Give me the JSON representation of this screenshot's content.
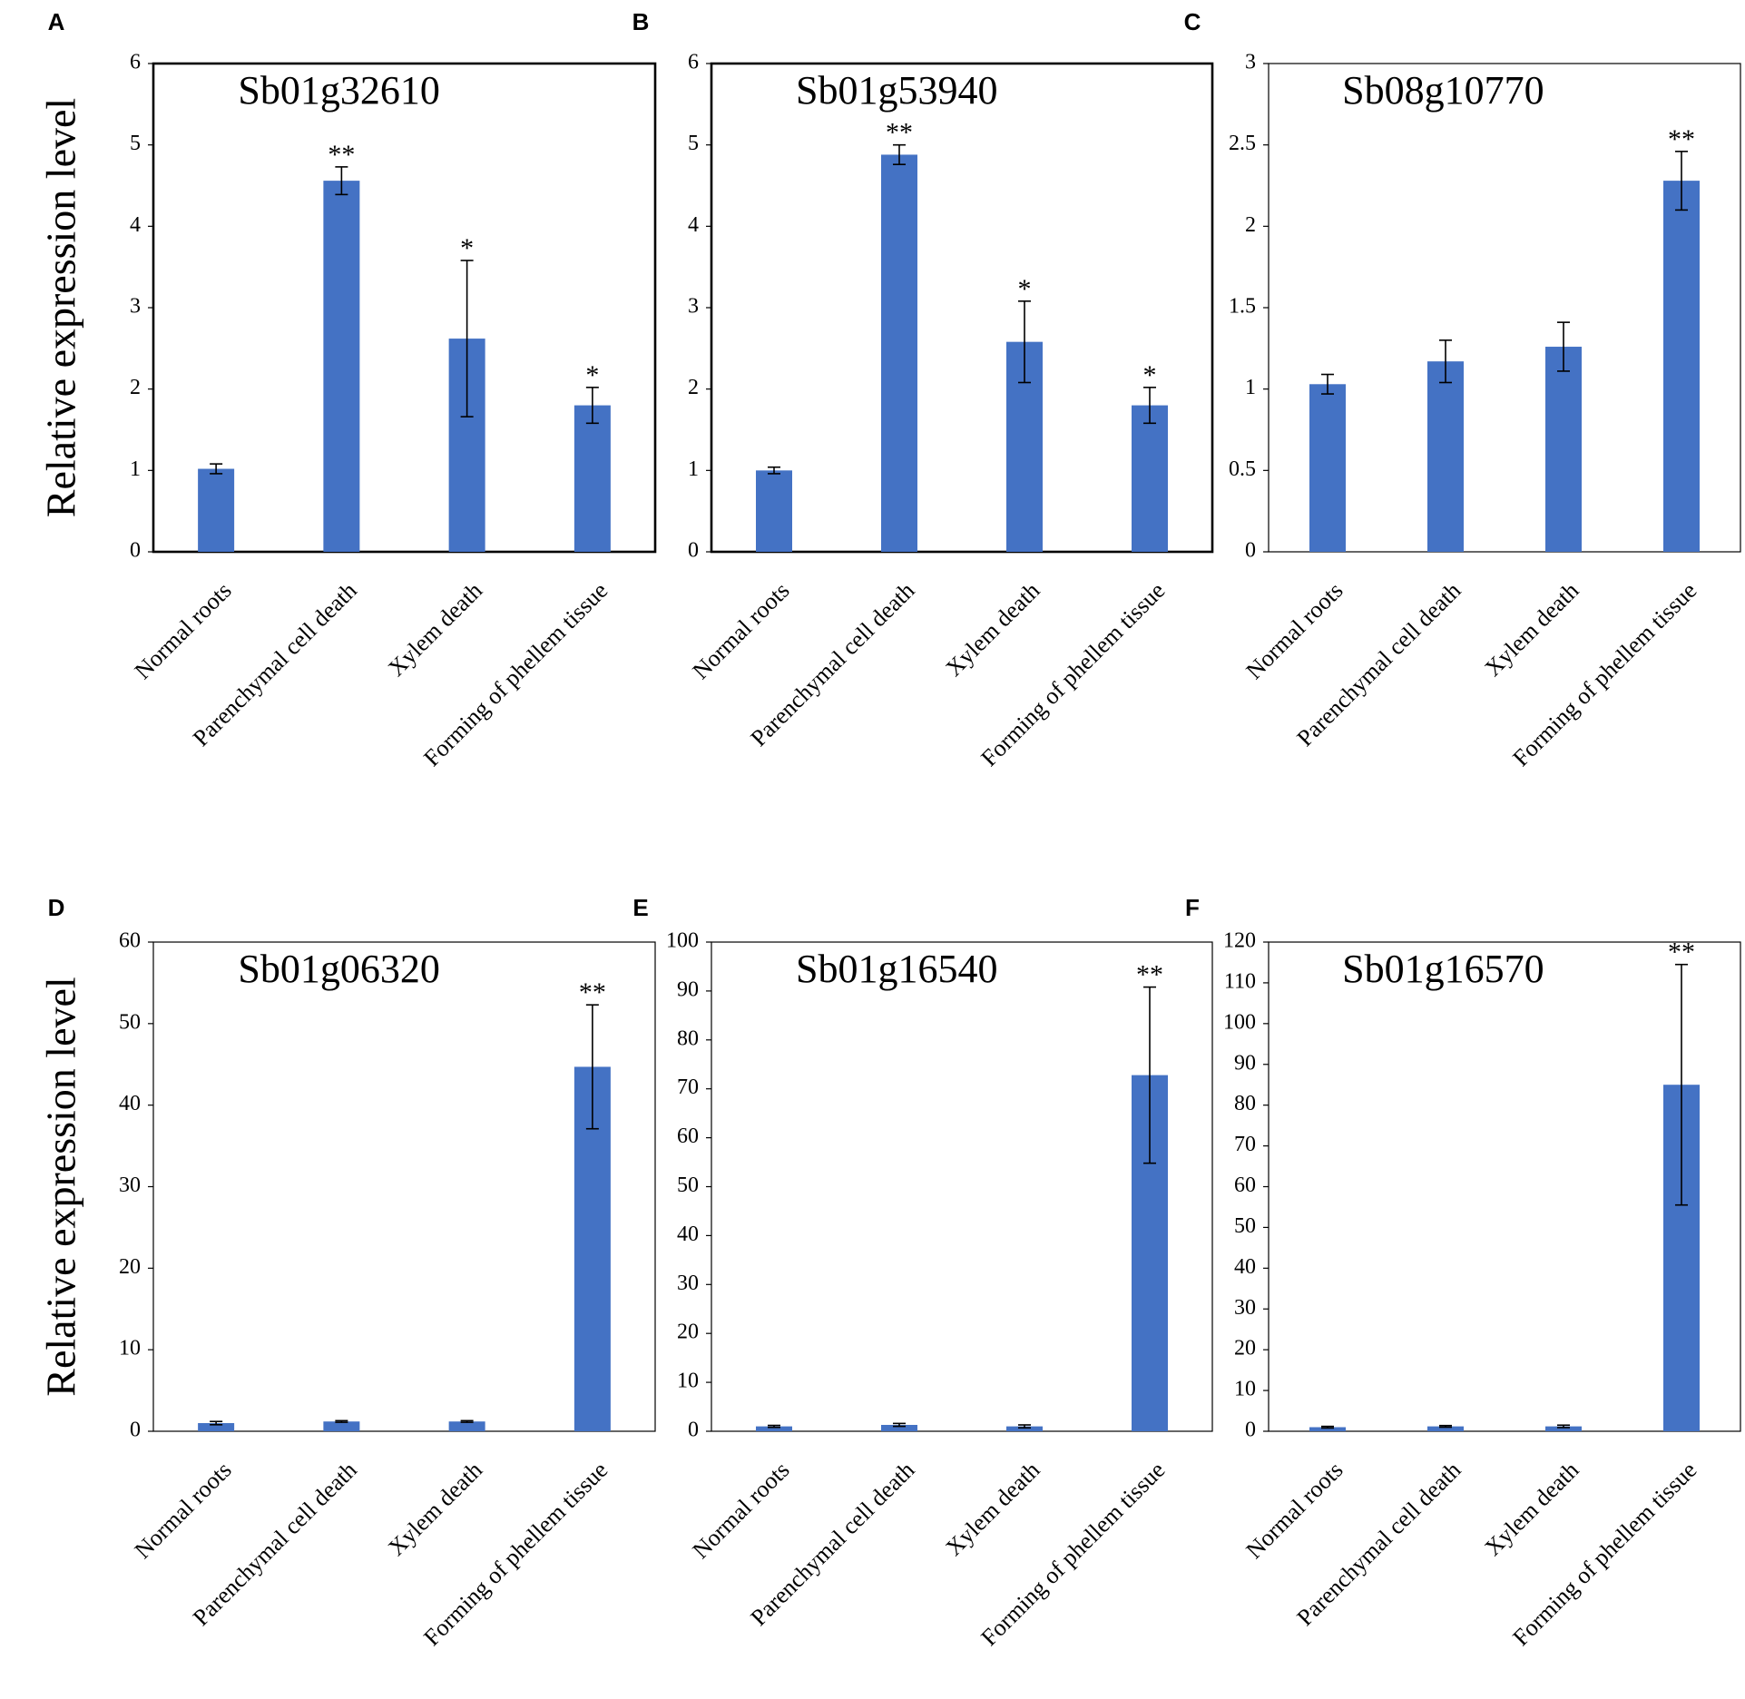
{
  "figure": {
    "ylabel": "Relative expression level",
    "bar_color": "#4472C4"
  },
  "chart_data": [
    {
      "type": "bar",
      "panel": "A",
      "title": "Sb01g32610",
      "xlabel": "",
      "ylabel": "Relative expression level",
      "categories": [
        "Normal roots",
        "Parenchymal cell death",
        "Xylem death",
        "Forming of phellem tissue"
      ],
      "values": [
        1.02,
        4.56,
        2.62,
        1.8
      ],
      "errors": [
        0.06,
        0.17,
        0.96,
        0.22
      ],
      "significance": [
        "",
        "**",
        "*",
        "*"
      ],
      "ylim": [
        0,
        6
      ],
      "yticks": [
        0,
        1,
        2,
        3,
        4,
        5,
        6
      ],
      "ytick_labels": [
        "0",
        "1",
        "2",
        "3",
        "4",
        "5",
        "6"
      ],
      "frame": "bold"
    },
    {
      "type": "bar",
      "panel": "B",
      "title": "Sb01g53940",
      "xlabel": "",
      "ylabel": "",
      "categories": [
        "Normal roots",
        "Parenchymal cell death",
        "Xylem death",
        "Forming of phellem tissue"
      ],
      "values": [
        1.0,
        4.88,
        2.58,
        1.8
      ],
      "errors": [
        0.04,
        0.12,
        0.5,
        0.22
      ],
      "significance": [
        "",
        "**",
        "*",
        "*"
      ],
      "ylim": [
        0,
        6
      ],
      "yticks": [
        0,
        1,
        2,
        3,
        4,
        5,
        6
      ],
      "ytick_labels": [
        "0",
        "1",
        "2",
        "3",
        "4",
        "5",
        "6"
      ],
      "frame": "bold"
    },
    {
      "type": "bar",
      "panel": "C",
      "title": "Sb08g10770",
      "xlabel": "",
      "ylabel": "",
      "categories": [
        "Normal roots",
        "Parenchymal cell death",
        "Xylem death",
        "Forming of phellem tissue"
      ],
      "values": [
        1.03,
        1.17,
        1.26,
        2.28
      ],
      "errors": [
        0.06,
        0.13,
        0.15,
        0.18
      ],
      "significance": [
        "",
        "",
        "",
        "**"
      ],
      "ylim": [
        0,
        3
      ],
      "yticks": [
        0,
        0.5,
        1,
        1.5,
        2,
        2.5,
        3
      ],
      "ytick_labels": [
        "0",
        "0.5",
        "1",
        "1.5",
        "2",
        "2.5",
        "3"
      ],
      "frame": "thin"
    },
    {
      "type": "bar",
      "panel": "D",
      "title": "Sb01g06320",
      "xlabel": "",
      "ylabel": "Relative expression level",
      "categories": [
        "Normal roots",
        "Parenchymal cell death",
        "Xylem death",
        "Forming of phellem tissue"
      ],
      "values": [
        1.0,
        1.2,
        1.2,
        44.7
      ],
      "errors": [
        0.2,
        0.1,
        0.1,
        7.6
      ],
      "significance": [
        "",
        "",
        "",
        "**"
      ],
      "ylim": [
        0,
        60
      ],
      "yticks": [
        0,
        10,
        20,
        30,
        40,
        50,
        60
      ],
      "ytick_labels": [
        "0",
        "10",
        "20",
        "30",
        "40",
        "50",
        "60"
      ],
      "frame": "thin"
    },
    {
      "type": "bar",
      "panel": "E",
      "title": "Sb01g16540",
      "xlabel": "",
      "ylabel": "",
      "categories": [
        "Normal roots",
        "Parenchymal cell death",
        "Xylem death",
        "Forming of phellem tissue"
      ],
      "values": [
        1.0,
        1.3,
        1.0,
        72.8
      ],
      "errors": [
        0.2,
        0.3,
        0.3,
        18.0
      ],
      "significance": [
        "",
        "",
        "",
        "**"
      ],
      "ylim": [
        0,
        100
      ],
      "yticks": [
        0,
        10,
        20,
        30,
        40,
        50,
        60,
        70,
        80,
        90,
        100
      ],
      "ytick_labels": [
        "0",
        "10",
        "20",
        "30",
        "40",
        "50",
        "60",
        "70",
        "80",
        "90",
        "100"
      ],
      "frame": "thin"
    },
    {
      "type": "bar",
      "panel": "F",
      "title": "Sb01g16570",
      "xlabel": "",
      "ylabel": "",
      "categories": [
        "Normal roots",
        "Parenchymal cell death",
        "Xylem death",
        "Forming of phellem tissue"
      ],
      "values": [
        1.0,
        1.2,
        1.2,
        85.0
      ],
      "errors": [
        0.2,
        0.2,
        0.3,
        29.5
      ],
      "significance": [
        "",
        "",
        "",
        "**"
      ],
      "ylim": [
        0,
        120
      ],
      "yticks": [
        0,
        10,
        20,
        30,
        40,
        50,
        60,
        70,
        80,
        90,
        100,
        110,
        120
      ],
      "ytick_labels": [
        "0",
        "10",
        "20",
        "30",
        "40",
        "50",
        "60",
        "70",
        "80",
        "90",
        "100",
        "110",
        "120"
      ],
      "frame": "thin"
    }
  ]
}
